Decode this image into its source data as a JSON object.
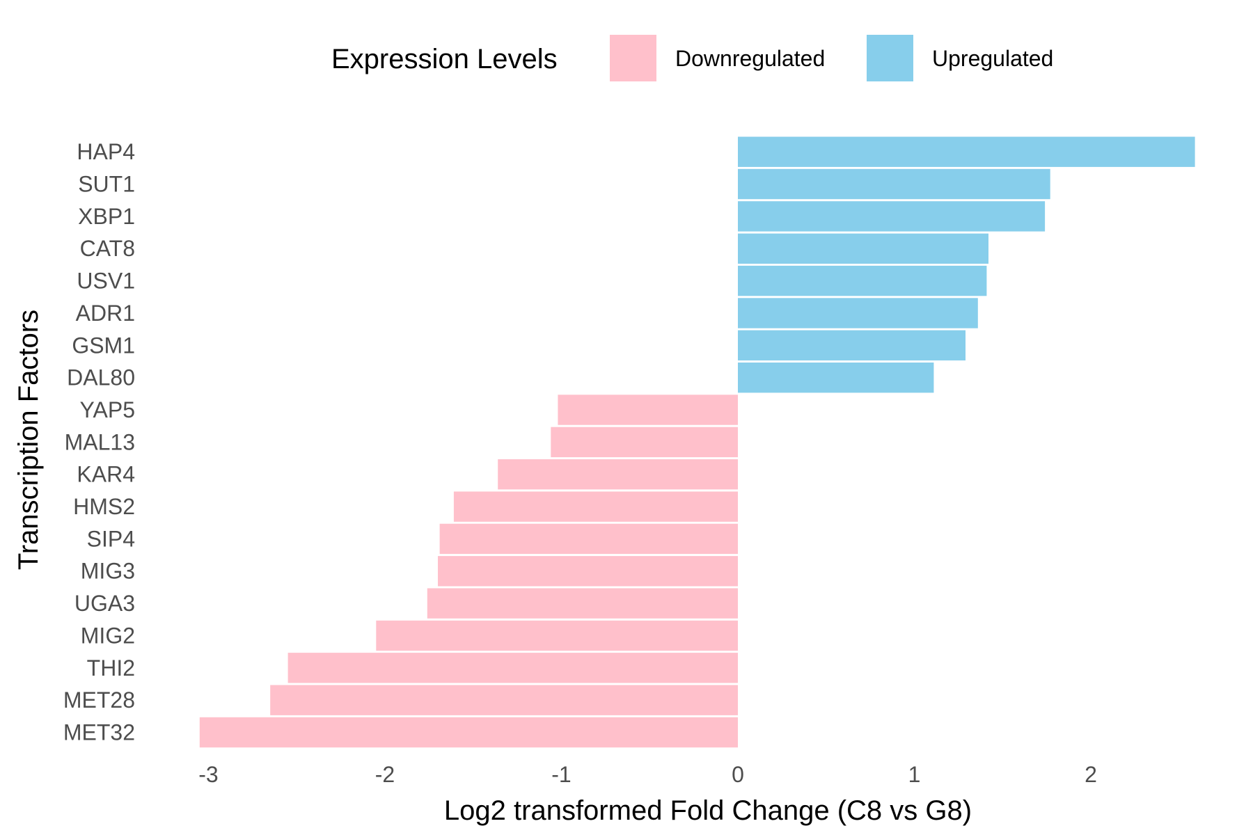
{
  "chart_data": {
    "type": "bar",
    "orientation": "horizontal",
    "xlabel": "Log2 transformed Fold Change (C8 vs G8)",
    "ylabel": "Transcription Factors",
    "xlim": [
      -3.05,
      2.6
    ],
    "xticks": [
      -3,
      -2,
      -1,
      0,
      1,
      2
    ],
    "xtick_labels": [
      "-3",
      "-2",
      "-1",
      "0",
      "1",
      "2"
    ],
    "grid": false,
    "legend": {
      "title": "Expression Levels",
      "position": "top",
      "entries": [
        {
          "label": "Downregulated",
          "color": "#FFC0CB"
        },
        {
          "label": "Upregulated",
          "color": "#87CEEB"
        }
      ]
    },
    "categories": [
      "HAP4",
      "SUT1",
      "XBP1",
      "CAT8",
      "USV1",
      "ADR1",
      "GSM1",
      "DAL80",
      "YAP5",
      "MAL13",
      "KAR4",
      "HMS2",
      "SIP4",
      "MIG3",
      "UGA3",
      "MIG2",
      "THI2",
      "MET28",
      "MET32"
    ],
    "values": [
      2.59,
      1.77,
      1.74,
      1.42,
      1.41,
      1.36,
      1.29,
      1.11,
      -1.02,
      -1.06,
      -1.36,
      -1.61,
      -1.69,
      -1.7,
      -1.76,
      -2.05,
      -2.55,
      -2.65,
      -3.05
    ],
    "groups": [
      "Upregulated",
      "Upregulated",
      "Upregulated",
      "Upregulated",
      "Upregulated",
      "Upregulated",
      "Upregulated",
      "Upregulated",
      "Downregulated",
      "Downregulated",
      "Downregulated",
      "Downregulated",
      "Downregulated",
      "Downregulated",
      "Downregulated",
      "Downregulated",
      "Downregulated",
      "Downregulated",
      "Downregulated"
    ]
  }
}
